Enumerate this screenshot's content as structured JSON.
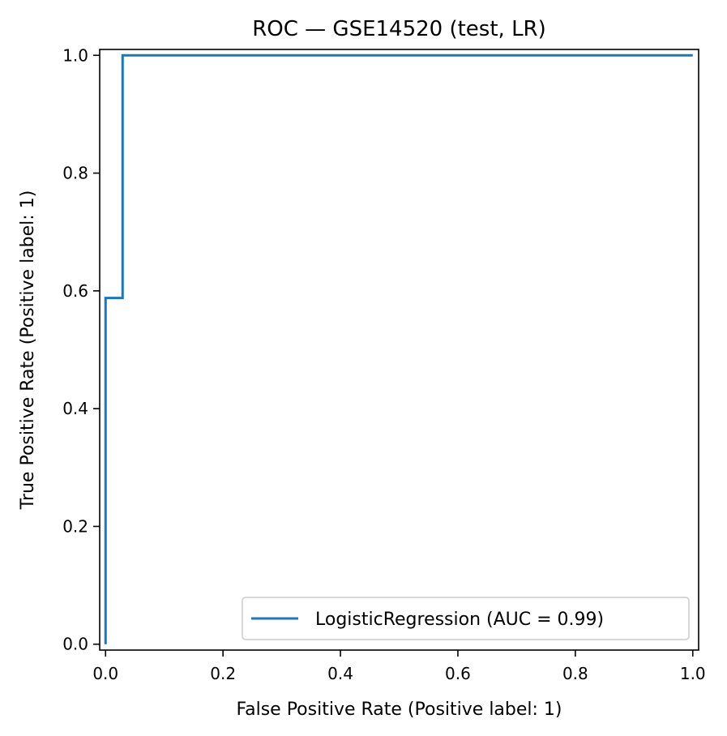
{
  "chart_data": {
    "type": "line",
    "title": "ROC — GSE14520 (test, LR)",
    "xlabel": "False Positive Rate (Positive label: 1)",
    "ylabel": "True Positive Rate (Positive label: 1)",
    "xlim": [
      -0.01,
      1.01
    ],
    "ylim": [
      -0.01,
      1.01
    ],
    "xticks": [
      0.0,
      0.2,
      0.4,
      0.6,
      0.8,
      1.0
    ],
    "yticks": [
      0.0,
      0.2,
      0.4,
      0.6,
      0.8,
      1.0
    ],
    "xtick_labels": [
      "0.0",
      "0.2",
      "0.4",
      "0.6",
      "0.8",
      "1.0"
    ],
    "ytick_labels": [
      "0.0",
      "0.2",
      "0.4",
      "0.6",
      "0.8",
      "1.0"
    ],
    "grid": false,
    "legend_position": "lower-right",
    "series": [
      {
        "name": "LogisticRegression (AUC = 0.99)",
        "color": "#1f77b4",
        "x": [
          0.0,
          0.0,
          0.0,
          0.029,
          0.029,
          1.0
        ],
        "y": [
          0.0,
          0.0,
          0.588,
          0.588,
          1.0,
          1.0
        ]
      }
    ]
  }
}
